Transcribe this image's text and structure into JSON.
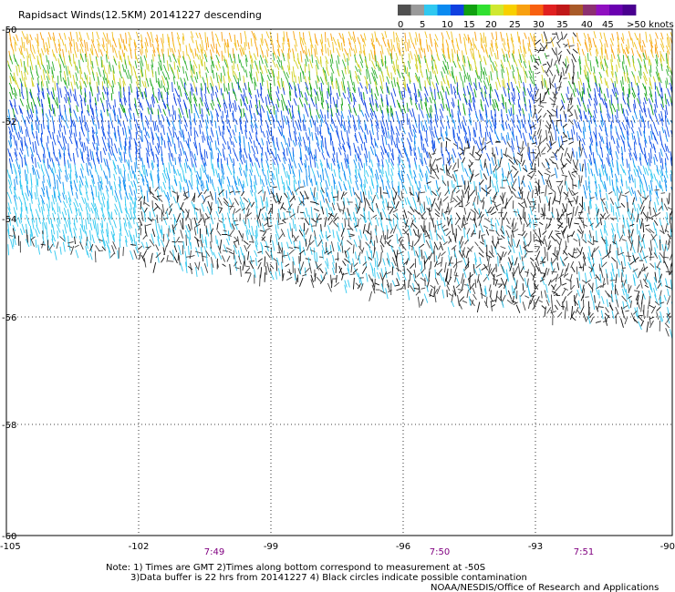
{
  "title": "Rapidsact Winds(12.5KM) 20141227 descending",
  "color_scale": {
    "labels": [
      "0",
      "5",
      "10",
      "15",
      "20",
      "25",
      "30",
      "35",
      "40",
      "45",
      ">50 knots"
    ],
    "colors": [
      "#505050",
      "#9a9a9a",
      "#30c8f0",
      "#0a8af0",
      "#1040e0",
      "#10a010",
      "#30e030",
      "#d0e830",
      "#f8d000",
      "#f8a010",
      "#f86010",
      "#e02020",
      "#c01818",
      "#a85a28",
      "#8c3070",
      "#9010c0",
      "#6a00b0",
      "#4a0090"
    ]
  },
  "map": {
    "lon_ticks": [
      "-105",
      "-102",
      "-99",
      "-96",
      "-93",
      "-90"
    ],
    "lat_ticks": [
      "-50",
      "-52",
      "-54",
      "-56",
      "-58",
      "-60"
    ],
    "times": [
      "7:49",
      "7:50",
      "7:51"
    ],
    "time_color": "#800080"
  },
  "notes": {
    "line1": "Note: 1) Times are GMT 2)Times along bottom correspond to measurement at -50S",
    "line2": "3)Data buffer is 22 hrs from 20141227 4) Black circles indicate possible contamination",
    "credit": "NOAA/NESDIS/Office of Research and Applications"
  }
}
